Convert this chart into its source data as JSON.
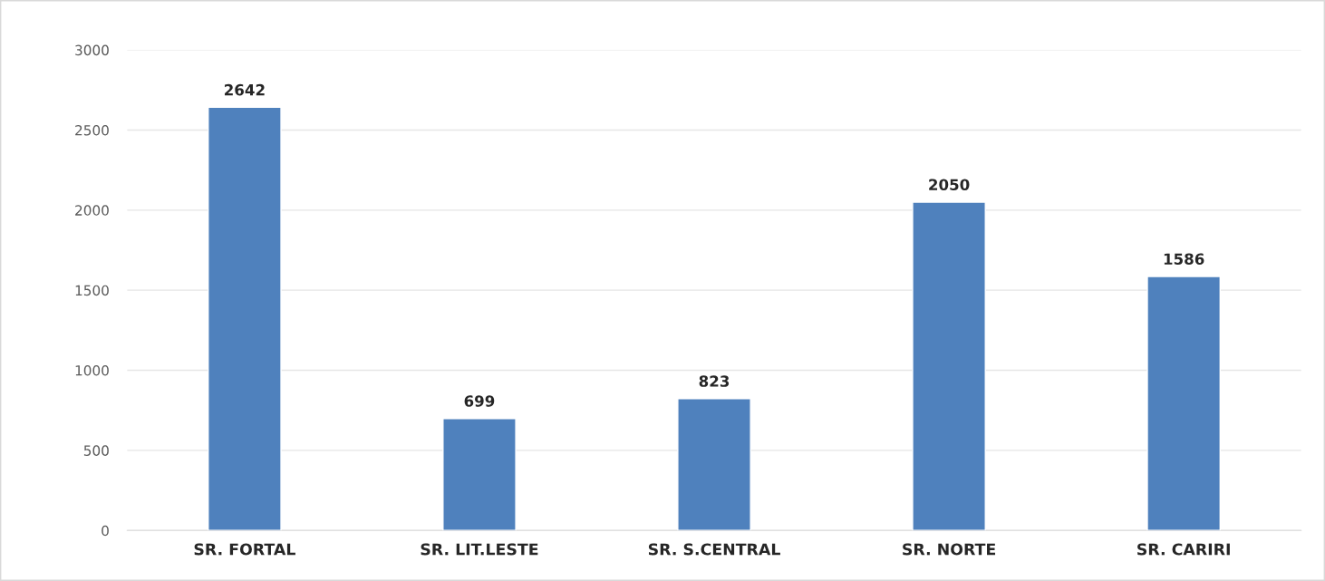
{
  "chart_data": {
    "type": "bar",
    "categories": [
      "SR. FORTAL",
      "SR. LIT.LESTE",
      "SR. S.CENTRAL",
      "SR. NORTE",
      "SR. CARIRI"
    ],
    "values": [
      2642,
      699,
      823,
      2050,
      1586
    ],
    "color": "#4f81bd",
    "ylim": [
      0,
      3000
    ],
    "yticks": [
      0,
      500,
      1000,
      1500,
      2000,
      2500,
      3000
    ],
    "grid": "y",
    "data_labels": true,
    "legend": false
  }
}
